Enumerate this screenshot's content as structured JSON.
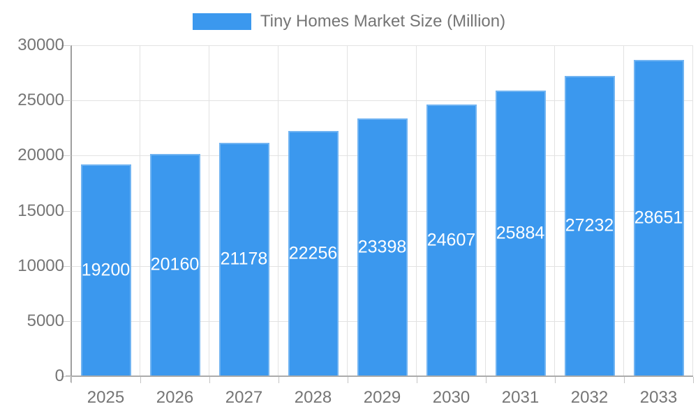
{
  "legend": {
    "label": "Tiny Homes Market Size (Million)"
  },
  "chart_data": {
    "type": "bar",
    "title": "Tiny Homes Market Size (Million)",
    "categories": [
      "2025",
      "2026",
      "2027",
      "2028",
      "2029",
      "2030",
      "2031",
      "2032",
      "2033"
    ],
    "series": [
      {
        "name": "Tiny Homes Market Size (Million)",
        "values": [
          19200,
          20160,
          21178,
          22256,
          23398,
          24607,
          25884,
          27232,
          28651
        ]
      }
    ],
    "data_labels": [
      "19200",
      "20160",
      "21178",
      "22256",
      "23398",
      "24607",
      "25884",
      "27232",
      "28651"
    ],
    "data_labels_position": "inside-center",
    "xlabel": "",
    "ylabel": "",
    "ylim": [
      0,
      30000
    ],
    "y_ticks": [
      0,
      5000,
      10000,
      15000,
      20000,
      25000,
      30000
    ],
    "y_tick_labels": [
      "0",
      "5000",
      "10000",
      "15000",
      "20000",
      "25000",
      "30000"
    ],
    "grid": true,
    "legend_position": "top-center"
  },
  "colors": {
    "bar": "#3b98ee",
    "bar_label": "#ffffff",
    "axis_text": "#757575",
    "grid_line": "#e2e2e2",
    "axis_line": "#ababab",
    "tick_line": "#c4c4c4",
    "background": "#ffffff"
  }
}
